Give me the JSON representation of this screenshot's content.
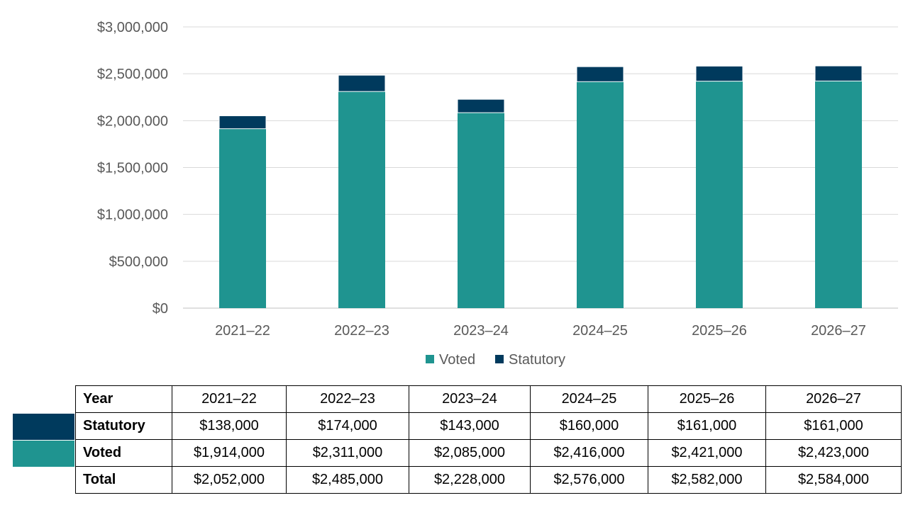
{
  "chart_data": {
    "type": "bar",
    "stacked": true,
    "categories": [
      "2021–22",
      "2022–23",
      "2023–24",
      "2024–25",
      "2025–26",
      "2026–27"
    ],
    "series": [
      {
        "name": "Voted",
        "values": [
          1914000,
          2311000,
          2085000,
          2416000,
          2421000,
          2423000
        ],
        "color": "#1f9490"
      },
      {
        "name": "Statutory",
        "values": [
          138000,
          174000,
          143000,
          160000,
          161000,
          161000
        ],
        "color": "#003a5d"
      }
    ],
    "ylim": [
      0,
      3000000
    ],
    "yticks": [
      0,
      500000,
      1000000,
      1500000,
      2000000,
      2500000,
      3000000
    ],
    "ytick_labels": [
      "$0",
      "$500,000",
      "$1,000,000",
      "$1,500,000",
      "$2,000,000",
      "$2,500,000",
      "$3,000,000"
    ],
    "grid": true,
    "legend_position": "bottom"
  },
  "table": {
    "rows": [
      {
        "label": "Year",
        "cells": [
          "2021–22",
          "2022–23",
          "2023–24",
          "2024–25",
          "2025–26",
          "2026–27"
        ]
      },
      {
        "label": "Statutory",
        "cells": [
          "$138,000",
          "$174,000",
          "$143,000",
          "$160,000",
          "$161,000",
          "$161,000"
        ],
        "swatch_color": "#003a5d"
      },
      {
        "label": "Voted",
        "cells": [
          "$1,914,000",
          "$2,311,000",
          "$2,085,000",
          "$2,416,000",
          "$2,421,000",
          "$2,423,000"
        ],
        "swatch_color": "#1f9490"
      },
      {
        "label": "Total",
        "cells": [
          "$2,052,000",
          "$2,485,000",
          "$2,228,000",
          "$2,576,000",
          "$2,582,000",
          "$2,584,000"
        ]
      }
    ]
  }
}
